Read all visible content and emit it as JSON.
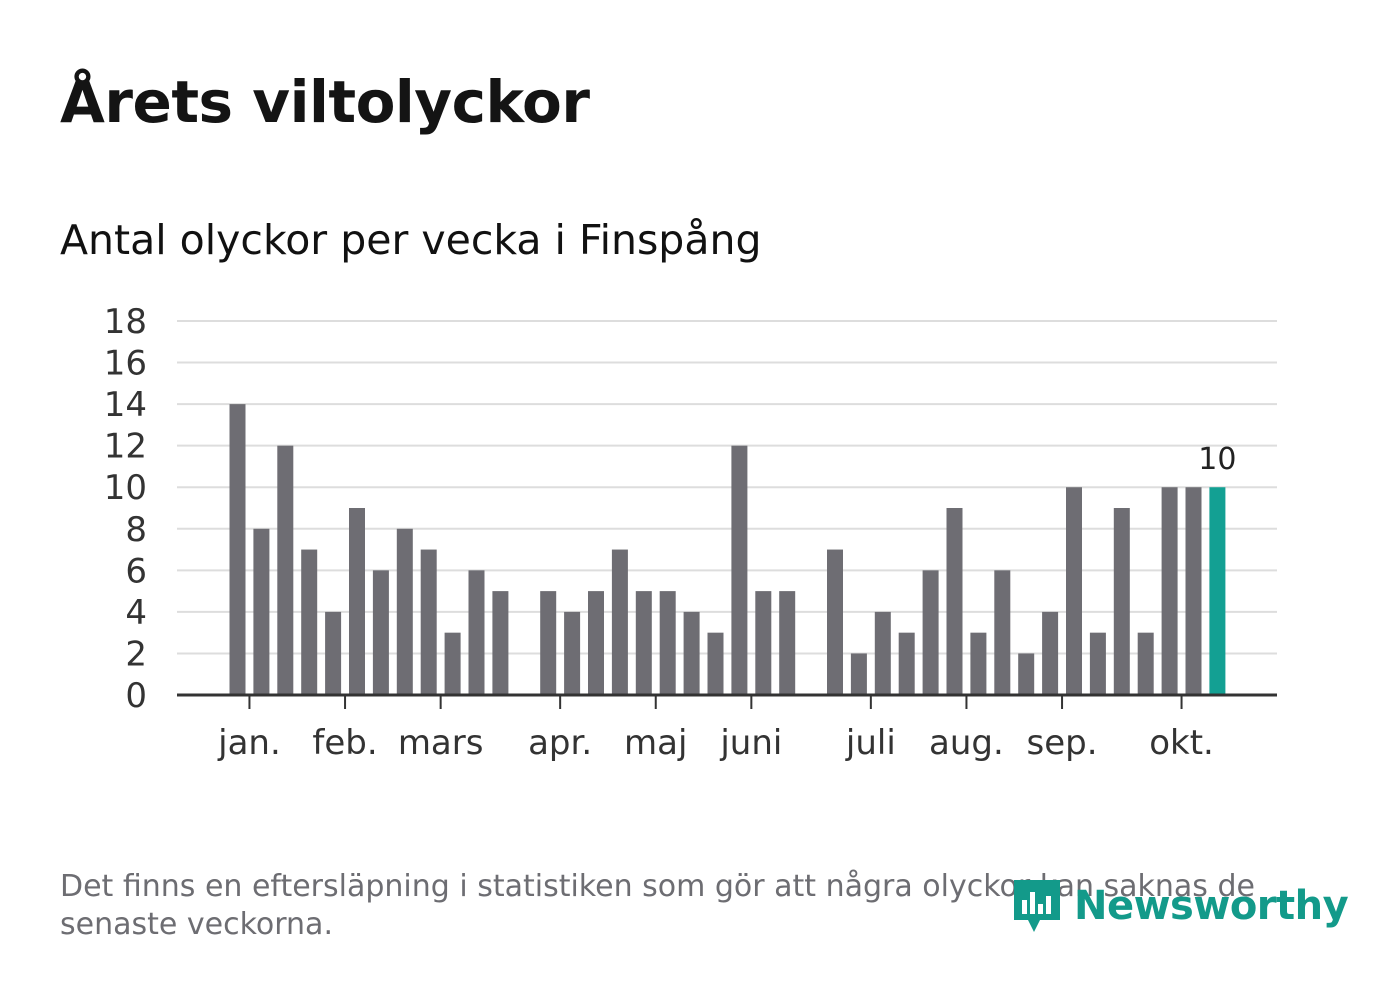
{
  "title": "Årets viltolyckor",
  "subtitle": "Antal olyckor per vecka i Finspång",
  "footnote": "Det finns en eftersläpning i statistiken som gör att några olyckor kan saknas de senaste veckorna.",
  "brand": {
    "name": "Newsworthy",
    "color": "#139a8a",
    "icon": "newsworthy-logo-icon"
  },
  "colors": {
    "bar": "#6e6d73",
    "highlight": "#13a093",
    "grid": "#dddddd",
    "axis": "#333333"
  },
  "chart_data": {
    "type": "bar",
    "title": "Antal olyckor per vecka i Finspång",
    "xlabel": "",
    "ylabel": "",
    "ylim": [
      0,
      18
    ],
    "yticks": [
      0,
      2,
      4,
      6,
      8,
      10,
      12,
      14,
      16,
      18
    ],
    "grid": true,
    "week_slots": 44,
    "values": [
      null,
      null,
      14,
      8,
      12,
      7,
      4,
      9,
      6,
      8,
      7,
      3,
      6,
      5,
      null,
      5,
      4,
      5,
      7,
      5,
      5,
      4,
      3,
      12,
      5,
      5,
      null,
      7,
      2,
      4,
      3,
      6,
      9,
      3,
      6,
      2,
      4,
      10,
      3,
      9,
      3,
      10,
      10,
      10
    ],
    "highlight_index": 43,
    "highlight_label": "10",
    "months": [
      {
        "label": "jan.",
        "slot": 2.5
      },
      {
        "label": "feb.",
        "slot": 6.5
      },
      {
        "label": "mars",
        "slot": 10.5
      },
      {
        "label": "apr.",
        "slot": 15.5
      },
      {
        "label": "maj",
        "slot": 19.5
      },
      {
        "label": "juni",
        "slot": 23.5
      },
      {
        "label": "juli",
        "slot": 28.5
      },
      {
        "label": "aug.",
        "slot": 32.5
      },
      {
        "label": "sep.",
        "slot": 36.5
      },
      {
        "label": "okt.",
        "slot": 41.5
      }
    ]
  }
}
